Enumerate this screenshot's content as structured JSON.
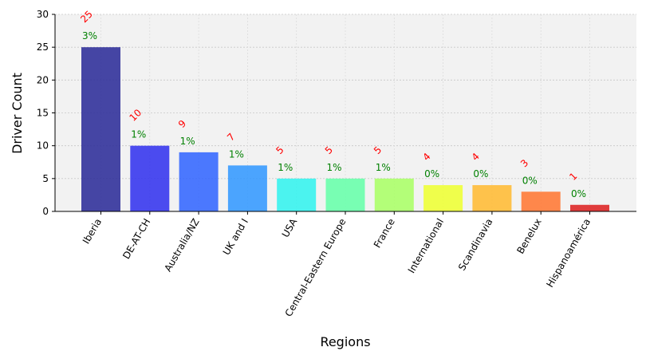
{
  "chart_data": {
    "type": "bar",
    "categories": [
      "Iberia",
      "DE-AT-CH",
      "Australia/NZ",
      "UK and I",
      "USA",
      "Central-Eastern Europe",
      "France",
      "International",
      "Scandinavia",
      "Benelux",
      "Hispanoamérica"
    ],
    "values": [
      25,
      10,
      9,
      7,
      5,
      5,
      5,
      4,
      4,
      3,
      1
    ],
    "count_labels": [
      "25",
      "10",
      "9",
      "7",
      "5",
      "5",
      "5",
      "4",
      "4",
      "3",
      "1"
    ],
    "percent_labels": [
      "3%",
      "1%",
      "1%",
      "1%",
      "1%",
      "1%",
      "1%",
      "0%",
      "0%",
      "0%",
      "0%"
    ],
    "bar_colors": [
      "#2c2c98",
      "#3333ee",
      "#3366ff",
      "#3399ff",
      "#33f2ee",
      "#66ffaa",
      "#aaff66",
      "#eeff33",
      "#ffbb33",
      "#ff7733",
      "#dd2222"
    ],
    "count_label_color": "#ff0000",
    "percent_label_color": "#008000",
    "plot_background": "#f2f2f2",
    "xlabel": "Regions",
    "ylabel": "Driver Count",
    "ylim": [
      0,
      30
    ],
    "yticks": [
      "0",
      "5",
      "10",
      "15",
      "20",
      "25",
      "30"
    ],
    "grid": true,
    "legend": "none"
  }
}
